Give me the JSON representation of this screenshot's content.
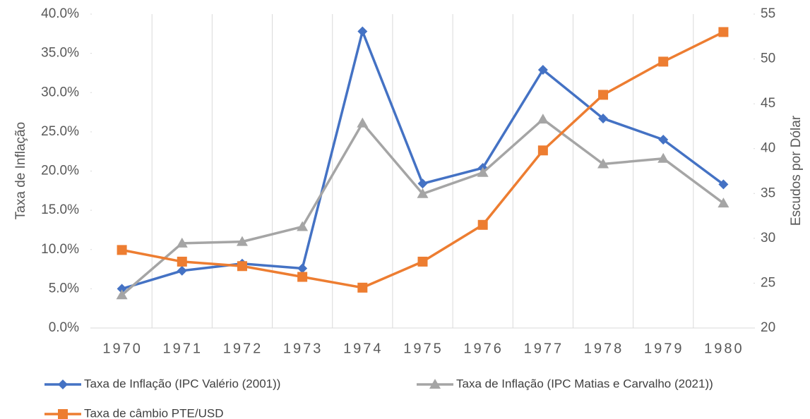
{
  "chart_data": {
    "type": "line",
    "y_label": "Taxa de Inflação",
    "y2_label": "Escudos por Dólar",
    "categories": [
      "1970",
      "1971",
      "1972",
      "1973",
      "1974",
      "1975",
      "1976",
      "1977",
      "1978",
      "1979",
      "1980"
    ],
    "series": [
      {
        "name": "Taxa de Inflação (IPC Valério (2001))",
        "color": "#4472c4",
        "marker": "diamond",
        "values": [
          5.0,
          7.3,
          8.2,
          7.6,
          37.8,
          18.4,
          20.4,
          32.9,
          26.7,
          24.0,
          18.3
        ]
      },
      {
        "name": "Taxa de Inflação (IPC Matias e Carvalho (2021))",
        "color": "#a5a5a5",
        "marker": "triangle",
        "values": [
          4.2,
          10.8,
          11.0,
          12.9,
          26.1,
          17.1,
          19.8,
          26.6,
          20.9,
          21.6,
          15.9
        ]
      },
      {
        "name": "Taxa de câmbio PTE/USD",
        "color": "#ed7d31",
        "marker": "square",
        "axis": "y2",
        "values": [
          28.7,
          27.4,
          26.9,
          25.7,
          24.5,
          27.4,
          31.5,
          39.8,
          46.0,
          49.7,
          53.0
        ]
      }
    ],
    "ylim": [
      0,
      40
    ],
    "yticks": [
      {
        "value": 0,
        "label": "0.0%"
      },
      {
        "value": 5,
        "label": "5.0%"
      },
      {
        "value": 10,
        "label": "10.0%"
      },
      {
        "value": 15,
        "label": "15.0%"
      },
      {
        "value": 20,
        "label": "20.0%"
      },
      {
        "value": 25,
        "label": "25.0%"
      },
      {
        "value": 30,
        "label": "30.0%"
      },
      {
        "value": 35,
        "label": "35.0%"
      },
      {
        "value": 40,
        "label": "40.0%"
      }
    ],
    "y2lim": [
      20,
      55
    ],
    "y2ticks": [
      20,
      25,
      30,
      35,
      40,
      45,
      50,
      55
    ],
    "grid": true,
    "legend": "bottom"
  }
}
